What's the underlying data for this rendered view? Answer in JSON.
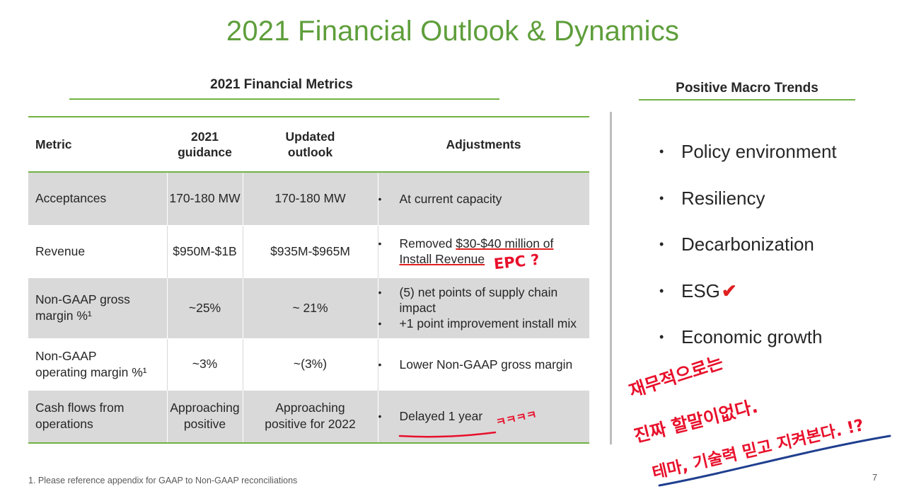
{
  "title": "2021 Financial Outlook & Dynamics",
  "metrics_section": {
    "heading": "2021 Financial Metrics",
    "columns": {
      "metric": "Metric",
      "guidance": [
        "2021",
        "guidance"
      ],
      "outlook": [
        "Updated",
        "outlook"
      ],
      "adjustments": "Adjustments"
    },
    "rows": [
      {
        "metric": [
          "Acceptances"
        ],
        "guidance": [
          "170-180 MW"
        ],
        "outlook": [
          "170-180 MW"
        ],
        "adjustments": [
          "At current capacity"
        ]
      },
      {
        "metric": [
          "Revenue"
        ],
        "guidance": [
          "$950M-$1B"
        ],
        "outlook": [
          "$935M-$965M"
        ],
        "adjustments_pre": "Removed ",
        "adjustments_und1": "$30-$40 million of",
        "adjustments_und2": "Install Revenue"
      },
      {
        "metric": [
          "Non-GAAP gross",
          "margin %¹"
        ],
        "guidance": [
          "~25%"
        ],
        "outlook": [
          "~ 21%"
        ],
        "adjustments": [
          "(5) net points of supply chain impact",
          "+1 point improvement install mix"
        ]
      },
      {
        "metric": [
          "Non-GAAP",
          "operating margin %¹"
        ],
        "guidance": [
          "~3%"
        ],
        "outlook": [
          "~(3%)"
        ],
        "adjustments": [
          "Lower Non-GAAP gross margin"
        ]
      },
      {
        "metric": [
          "Cash flows from",
          "operations"
        ],
        "guidance": [
          "Approaching",
          "positive"
        ],
        "outlook": [
          "Approaching",
          "positive for 2022"
        ],
        "adjustments": [
          "Delayed 1 year"
        ]
      }
    ]
  },
  "trends_section": {
    "heading": "Positive Macro Trends",
    "items": [
      "Policy environment",
      "Resiliency",
      "Decarbonization",
      "ESG",
      "Economic growth"
    ]
  },
  "footnote": "1. Please reference appendix for GAAP to Non-GAAP reconciliations",
  "page_number": "7",
  "annotations": {
    "epc": "EPC ?",
    "laugh": "ㅋㅋㅋㅋ",
    "note_line1": "재무적으로는",
    "note_line2": "진짜 할말이없다.",
    "note_line3": "테마, 기술력 믿고 지켜본다. !?"
  },
  "colors": {
    "accent_green": "#5e9e3b",
    "rule_green": "#72b243",
    "row_grey": "#d9d9d9",
    "ink_red": "#e8102b",
    "ink_blue": "#1f3f8f"
  }
}
